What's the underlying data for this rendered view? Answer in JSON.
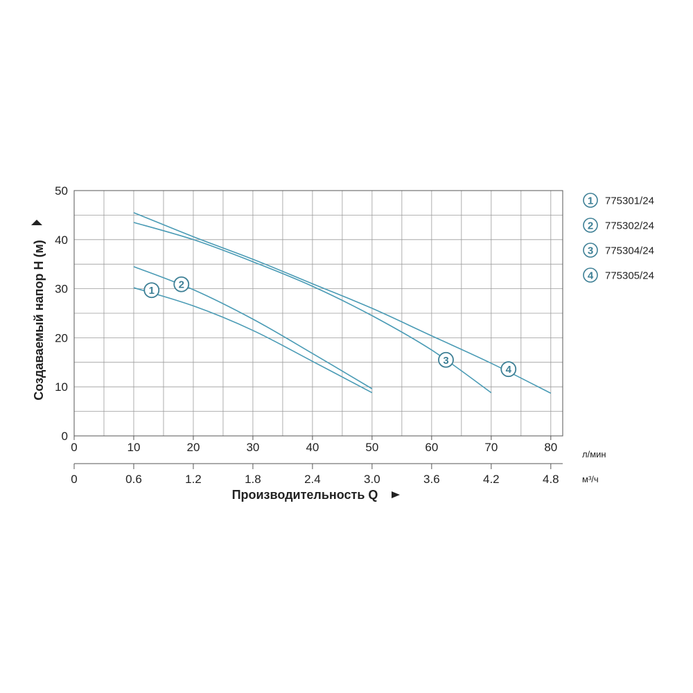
{
  "chart_data": {
    "type": "line",
    "ylabel": "Создаваемый напор H (м)",
    "xlabel": "Производительность Q",
    "xunit_primary": "л/мин",
    "xunit_secondary": "м³/ч",
    "xlim": [
      0,
      82
    ],
    "ylim": [
      0,
      50
    ],
    "yticks": [
      0,
      10,
      20,
      30,
      40,
      50
    ],
    "xticks_primary": [
      {
        "value": 0,
        "label": "0"
      },
      {
        "value": 10,
        "label": "10"
      },
      {
        "value": 20,
        "label": "20"
      },
      {
        "value": 30,
        "label": "30"
      },
      {
        "value": 40,
        "label": "40"
      },
      {
        "value": 50,
        "label": "50"
      },
      {
        "value": 60,
        "label": "60"
      },
      {
        "value": 70,
        "label": "70"
      },
      {
        "value": 80,
        "label": "80"
      }
    ],
    "xticks_secondary": [
      {
        "value": 0,
        "label": "0"
      },
      {
        "value": 10,
        "label": "0.6"
      },
      {
        "value": 20,
        "label": "1.2"
      },
      {
        "value": 30,
        "label": "1.8"
      },
      {
        "value": 40,
        "label": "2.4"
      },
      {
        "value": 50,
        "label": "3.0"
      },
      {
        "value": 60,
        "label": "3.6"
      },
      {
        "value": 70,
        "label": "4.2"
      },
      {
        "value": 80,
        "label": "4.8"
      }
    ],
    "grid": true,
    "grid_step_x": 5,
    "grid_step_y": 5,
    "line_color": "#4a9bb5",
    "marker_color": "#3d7f95",
    "series": [
      {
        "id": "1",
        "name": "775301/24",
        "marker_at": [
          13,
          29.7
        ],
        "x": [
          10,
          20,
          30,
          40,
          50
        ],
        "y": [
          30.2,
          26.5,
          21.5,
          15.2,
          8.8
        ]
      },
      {
        "id": "2",
        "name": "775302/24",
        "marker_at": [
          18,
          30.9
        ],
        "x": [
          10,
          20,
          30,
          40,
          50
        ],
        "y": [
          34.5,
          29.8,
          23.8,
          16.8,
          9.6
        ]
      },
      {
        "id": "3",
        "name": "775304/24",
        "marker_at": [
          62.4,
          15.5
        ],
        "x": [
          10,
          20,
          30,
          40,
          50,
          60,
          70
        ],
        "y": [
          43.5,
          40.0,
          35.5,
          30.5,
          24.5,
          17.5,
          8.8
        ]
      },
      {
        "id": "4",
        "name": "775305/24",
        "marker_at": [
          72.9,
          13.6
        ],
        "x": [
          10,
          20,
          30,
          40,
          50,
          60,
          70,
          80
        ],
        "y": [
          45.5,
          40.6,
          36.0,
          31.0,
          26.0,
          20.4,
          14.8,
          8.7
        ]
      }
    ]
  }
}
